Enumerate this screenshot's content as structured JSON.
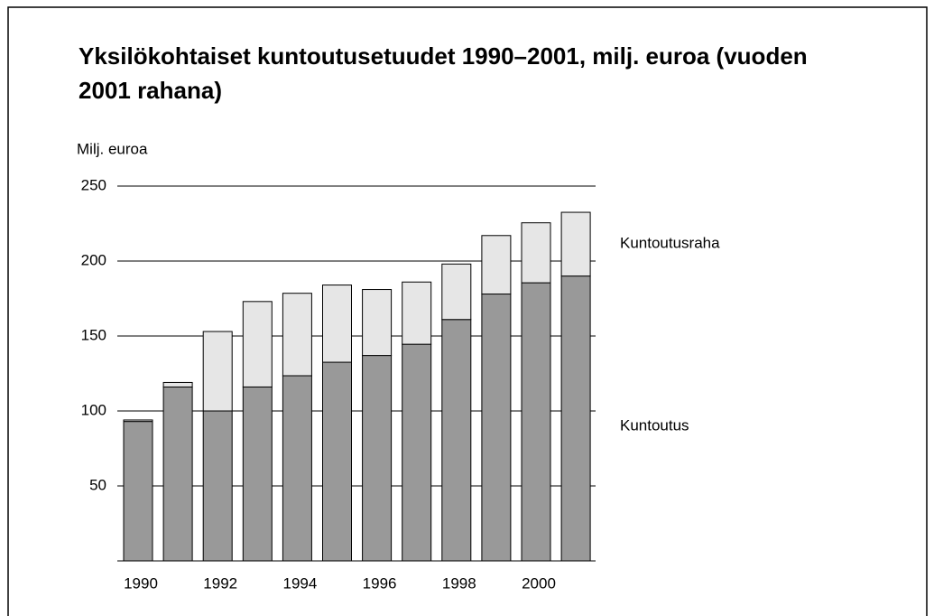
{
  "chart_data": {
    "type": "stacked_bar",
    "title": "Yksilökohtaiset kuntoutusetuudet 1990–2001, milj. euroa (vuoden 2001 rahana)",
    "y_label": "Milj. euroa",
    "categories": [
      "1990",
      null,
      "1992",
      null,
      "1994",
      null,
      "1996",
      null,
      "1998",
      null,
      "2000",
      null
    ],
    "series": [
      {
        "name": "Kuntoutus",
        "color": "#999999",
        "values": [
          93,
          116,
          100,
          116,
          123.5,
          132.5,
          137,
          144.5,
          161,
          178,
          185.5,
          190
        ]
      },
      {
        "name": "Kuntoutusraha",
        "color": "#e6e6e6",
        "values": [
          1,
          3,
          53,
          57,
          55,
          51.5,
          44,
          41.5,
          37,
          39,
          40,
          42.5
        ]
      }
    ],
    "ylim": [
      0,
      250
    ],
    "yticks": [
      50,
      100,
      150,
      200,
      250
    ],
    "grid": true
  }
}
